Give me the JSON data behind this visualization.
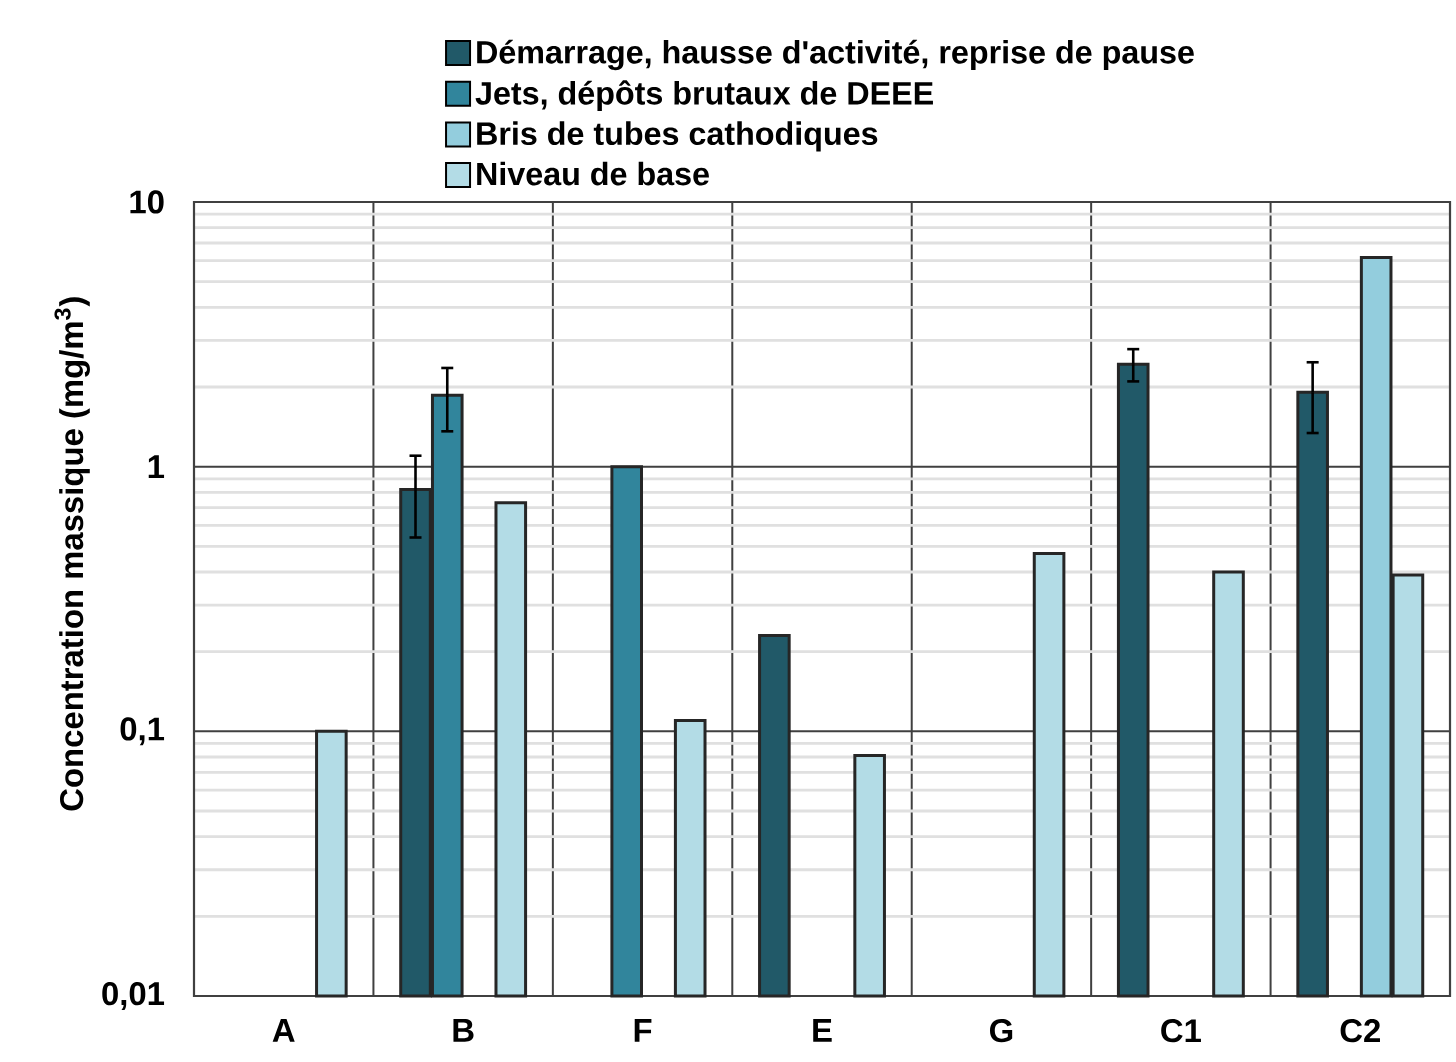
{
  "chart_data": {
    "type": "bar",
    "ylabel": "Concentration massique (mg/m$^{3}$)",
    "categories": [
      "A",
      "B",
      "F",
      "E",
      "G",
      "C1",
      "C2"
    ],
    "series": [
      {
        "name": "Démarrage, hausse d'activité, reprise de pause",
        "color": "#215968",
        "values": [
          null,
          0.82,
          null,
          0.23,
          null,
          2.44,
          1.91
        ],
        "errors": [
          null,
          0.28,
          null,
          null,
          null,
          0.34,
          0.57
        ]
      },
      {
        "name": "Jets, dépôts brutaux de DEEE",
        "color": "#31859c",
        "values": [
          null,
          1.86,
          1.0,
          null,
          null,
          null,
          null
        ],
        "errors": [
          null,
          0.5,
          null,
          null,
          null,
          null,
          null
        ]
      },
      {
        "name": "Bris de tubes cathodiques",
        "color": "#93cddd",
        "values": [
          null,
          null,
          null,
          null,
          null,
          null,
          6.17
        ]
      },
      {
        "name": "Niveau de base",
        "color": "#b3dce6",
        "values": [
          0.1,
          0.73,
          0.11,
          0.081,
          0.47,
          0.4,
          0.39
        ]
      }
    ],
    "log": true,
    "ylim": [
      0.01,
      10
    ],
    "yticks": [
      {
        "value": 0.01,
        "label": "0,01"
      },
      {
        "value": 0.1,
        "label": "0,1"
      },
      1,
      10
    ],
    "grid": true,
    "legend": "top"
  }
}
